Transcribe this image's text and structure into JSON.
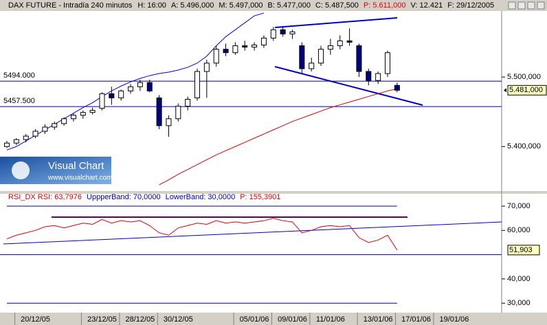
{
  "chart_data": [
    {
      "type": "candlestick",
      "title": "DAX FUTURE - Intradía 240 minutos",
      "info": [
        {
          "text": "H: 16:00",
          "color": "#000000"
        },
        {
          "text": "A: 5.496,000",
          "color": "#000000"
        },
        {
          "text": "M: 5.497,000",
          "color": "#000000"
        },
        {
          "text": "B: 5.477,000",
          "color": "#000000"
        },
        {
          "text": "C: 5.487,500",
          "color": "#000000"
        },
        {
          "text": "P: 5.611,000",
          "color": "#e00000"
        },
        {
          "text": "V: 12.421",
          "color": "#000000"
        },
        {
          "text": "F: 29/12/2005",
          "color": "#000000"
        }
      ],
      "categories": [
        null,
        null,
        null,
        "20/12/05",
        null,
        null,
        null,
        null,
        null,
        null,
        "23/12/05",
        null,
        null,
        null,
        "28/12/05",
        null,
        null,
        null,
        "30/12/05",
        null,
        null,
        null,
        null,
        null,
        null,
        null,
        "05/01/06",
        null,
        null,
        null,
        "09/01/06",
        null,
        null,
        null,
        "11/01/06",
        null,
        null,
        null,
        null,
        "13/01/06",
        null,
        null,
        null,
        "17/01/06",
        null,
        null,
        null,
        "19/01/06",
        null,
        null,
        null,
        null
      ],
      "open": [
        5400,
        5405,
        5410,
        5415,
        5422,
        5428,
        5433,
        5440,
        5445,
        5449,
        5455,
        5476,
        5470,
        5480,
        5486,
        5492,
        5470,
        5430,
        5440,
        5458,
        5470,
        5508,
        5520,
        5540,
        5535,
        5545,
        5543,
        5546,
        5556,
        5568,
        5562,
        5545,
        5512,
        5520,
        5540,
        5545,
        5552,
        5545,
        5508,
        5495,
        5505,
        5488,
        null,
        null,
        null,
        null,
        null,
        null,
        null,
        null,
        null,
        null
      ],
      "high": [
        5408,
        5412,
        5418,
        5425,
        5432,
        5436,
        5442,
        5448,
        5452,
        5456,
        5478,
        5486,
        5482,
        5490,
        5496,
        5496,
        5474,
        5445,
        5462,
        5472,
        5512,
        5525,
        5545,
        5548,
        5550,
        5552,
        5550,
        5560,
        5572,
        5572,
        5568,
        5550,
        5528,
        5545,
        5555,
        5560,
        5570,
        5548,
        5512,
        5508,
        5538,
        5492,
        null,
        null,
        null,
        null,
        null,
        null,
        null,
        null,
        null,
        null
      ],
      "low": [
        5398,
        5402,
        5406,
        5412,
        5418,
        5424,
        5430,
        5436,
        5440,
        5446,
        5452,
        5460,
        5466,
        5476,
        5480,
        5478,
        5425,
        5414,
        5436,
        5452,
        5466,
        5470,
        5515,
        5530,
        5532,
        5538,
        5538,
        5542,
        5552,
        5558,
        5555,
        5505,
        5508,
        5516,
        5532,
        5540,
        5545,
        5500,
        5488,
        5490,
        5500,
        5478,
        null,
        null,
        null,
        null,
        null,
        null,
        null,
        null,
        null,
        null
      ],
      "close": [
        5405,
        5410,
        5415,
        5422,
        5428,
        5433,
        5440,
        5445,
        5449,
        5452,
        5476,
        5470,
        5480,
        5486,
        5492,
        5480,
        5430,
        5440,
        5458,
        5468,
        5508,
        5520,
        5540,
        5535,
        5545,
        5543,
        5546,
        5556,
        5568,
        5562,
        5565,
        5512,
        5520,
        5540,
        5545,
        5552,
        5550,
        5508,
        5495,
        5505,
        5535,
        5481,
        null,
        null,
        null,
        null,
        null,
        null,
        null,
        null,
        null,
        null
      ],
      "up_color": "#ffffff",
      "down_color": "#000080",
      "series": [
        {
          "color": "#0000ff",
          "values": [
            5395,
            5400,
            5408,
            5416,
            5424,
            5432,
            5440,
            5448,
            5456,
            5463,
            5472,
            5480,
            5487,
            5493,
            5498,
            5502,
            5505,
            5507,
            5510,
            5514,
            5520,
            5530,
            5545,
            5558,
            5568,
            5578,
            5588,
            5592,
            null,
            null,
            null,
            null,
            null,
            null,
            null,
            null,
            null,
            null,
            null,
            null,
            null,
            null,
            null,
            null,
            null,
            null,
            null,
            null,
            null,
            null,
            null,
            null
          ]
        },
        {
          "color": "#e00000",
          "values": [
            null,
            null,
            null,
            null,
            null,
            null,
            null,
            null,
            null,
            null,
            null,
            null,
            null,
            null,
            null,
            null,
            5345,
            5352,
            5360,
            5367,
            5374,
            5381,
            5388,
            5394,
            5400,
            5406,
            5412,
            5418,
            5424,
            5430,
            5436,
            5441,
            5446,
            5451,
            5456,
            5460,
            5464,
            5468,
            5472,
            5476,
            5480,
            5483,
            null,
            null,
            null,
            null,
            null,
            null,
            null,
            null,
            null,
            null
          ]
        }
      ],
      "hlines": [
        {
          "value": 5494,
          "label": "5494.000"
        },
        {
          "value": 5457.5,
          "label": "5457.500"
        }
      ],
      "last_price": {
        "value": 5481,
        "label": "5.481,000"
      },
      "ylim": [
        5336,
        5595
      ],
      "yticks": [
        {
          "value": 5500,
          "label": "5.500,000"
        },
        {
          "value": 5400,
          "label": "5.400,000"
        }
      ]
    },
    {
      "type": "line",
      "info": [
        {
          "text": "RSI_DX RSI: 63,7976",
          "color": "#e00000"
        },
        {
          "text": "UppperBand: 70,0000",
          "color": "#0000c0"
        },
        {
          "text": "LowerBand: 30,0000",
          "color": "#0000c0"
        },
        {
          "text": "P: 155,3901",
          "color": "#e00000"
        }
      ],
      "series": [
        {
          "color": "#e00000",
          "values": [
            56.5,
            58,
            59,
            60,
            61.5,
            62,
            61,
            62,
            63,
            62.5,
            64.5,
            63,
            64,
            63.5,
            64,
            62,
            59,
            58,
            61,
            62,
            63,
            62.5,
            64,
            63,
            63.5,
            63,
            63.5,
            64,
            65,
            64,
            63.5,
            59,
            60,
            61.5,
            62,
            61.5,
            62,
            57,
            55,
            56,
            58,
            51.903,
            null,
            null,
            null,
            null,
            null,
            null,
            null,
            null,
            null,
            null
          ],
          "value_labels": [
            null,
            null,
            null,
            null,
            null,
            null,
            null,
            null,
            null,
            null,
            null,
            null,
            null,
            null,
            null,
            null,
            null,
            null,
            null,
            null,
            null,
            null,
            null,
            null,
            null,
            null,
            null,
            null,
            null,
            null,
            null,
            null,
            null,
            null,
            null,
            null,
            null,
            null,
            null,
            null,
            null,
            "51,903",
            null,
            null,
            null,
            null,
            null,
            null,
            null,
            null,
            null,
            null
          ]
        }
      ],
      "bands": [
        70,
        30
      ],
      "midline": 50,
      "ylim": [
        26.1,
        75.1
      ],
      "yticks": [
        {
          "value": 70,
          "label": "70,000"
        },
        {
          "value": 60,
          "label": "60,000"
        },
        {
          "value": 40,
          "label": "40,000"
        },
        {
          "value": 30,
          "label": "30,000"
        }
      ]
    }
  ],
  "logo": {
    "title": "Visual Chart",
    "url": "www.visualchart.com"
  }
}
